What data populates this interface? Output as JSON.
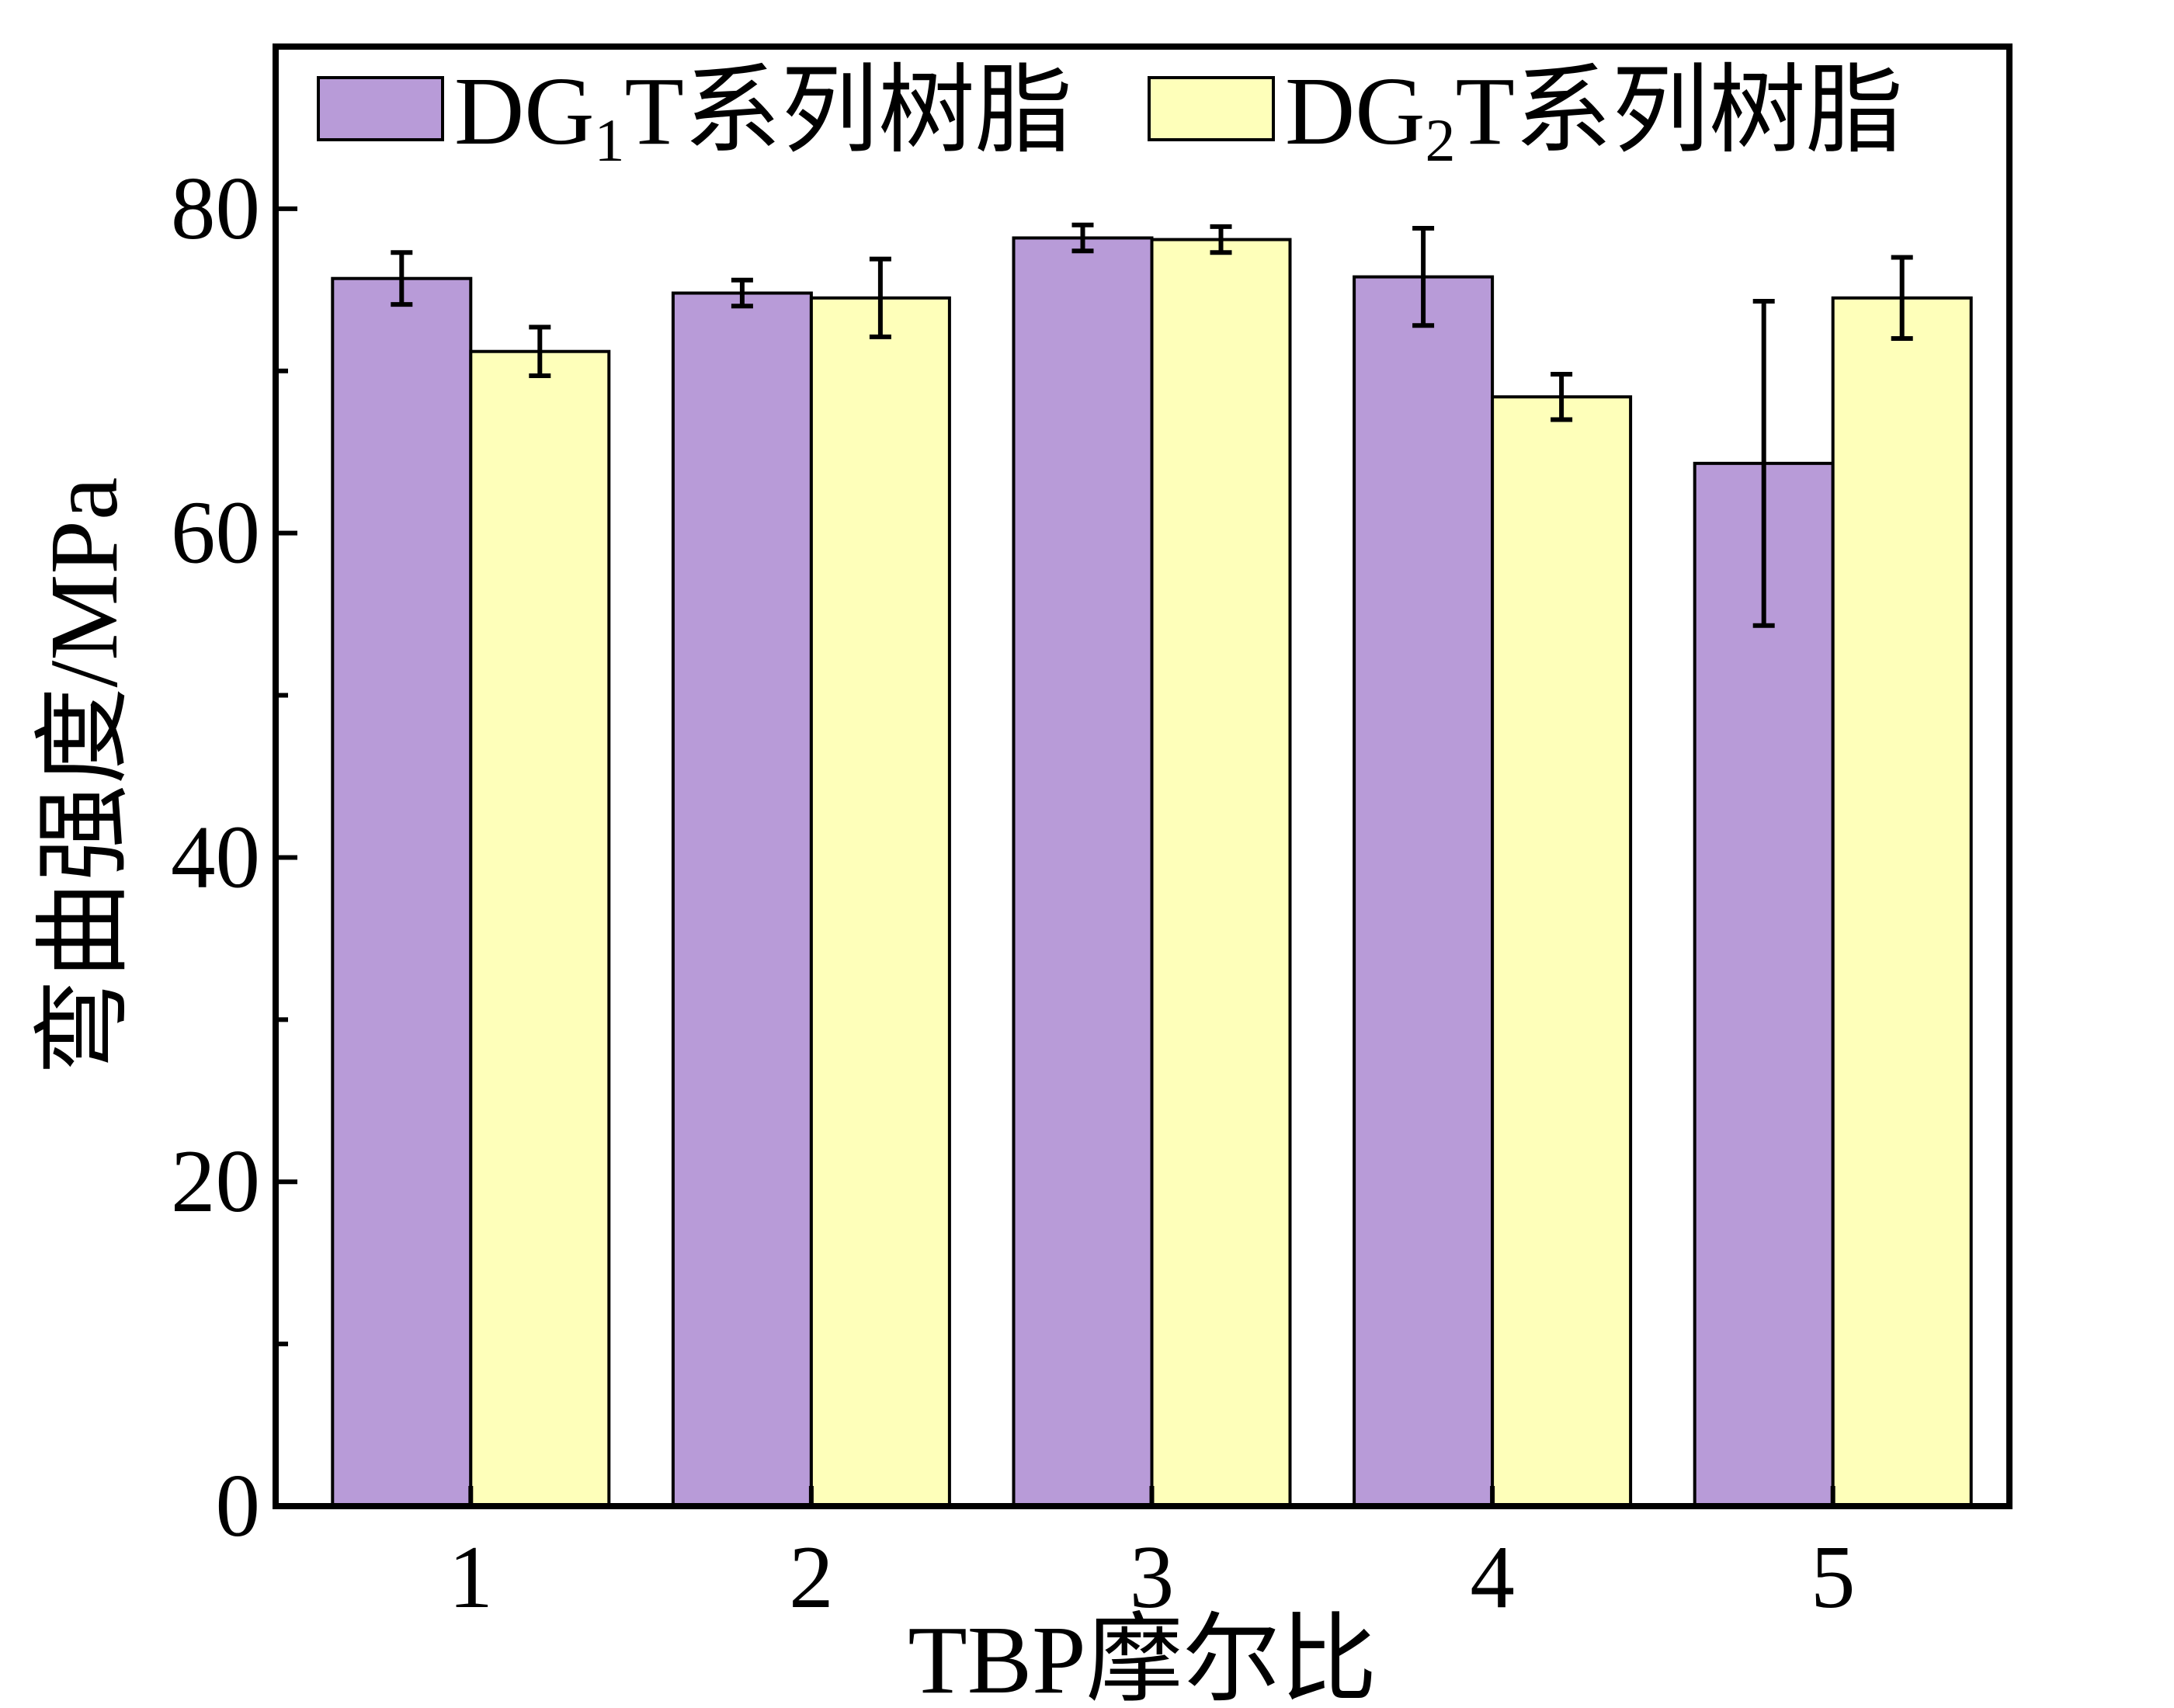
{
  "chart_data": {
    "type": "bar",
    "title": "",
    "xlabel": "TBP摩尔比",
    "ylabel": "弯曲强度/MPa",
    "categories": [
      "1",
      "2",
      "3",
      "4",
      "5"
    ],
    "ylim": [
      0,
      90
    ],
    "yticks": [
      0,
      20,
      40,
      60,
      80
    ],
    "grid": false,
    "legend_position": "top",
    "series": [
      {
        "name": "DG1T系列树脂",
        "name_parts": {
          "prefix": "DG",
          "sub": "1",
          "suffix": "T系列树脂"
        },
        "color": "#b89bd8",
        "values": [
          75.7,
          74.8,
          78.2,
          75.8,
          64.3
        ],
        "errors": [
          1.6,
          0.8,
          0.8,
          3.0,
          10.0
        ]
      },
      {
        "name": "DG2T系列树脂",
        "name_parts": {
          "prefix": "DG",
          "sub": "2",
          "suffix": "T系列树脂"
        },
        "color": "#feffba",
        "values": [
          71.2,
          74.5,
          78.1,
          68.4,
          74.5
        ],
        "errors": [
          1.5,
          2.4,
          0.8,
          1.4,
          2.5
        ]
      }
    ]
  }
}
